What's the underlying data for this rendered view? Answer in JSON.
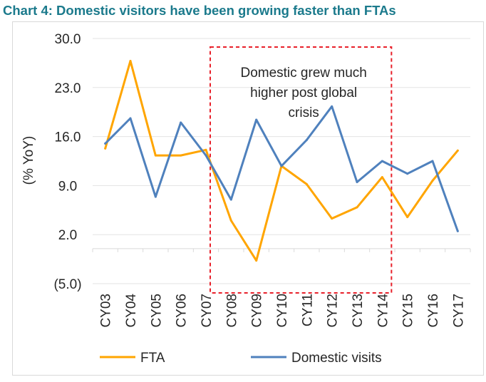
{
  "chart_data": {
    "type": "line",
    "title": "Chart 4: Domestic visitors have been growing faster than FTAs",
    "ylabel": "(% YoY)",
    "xlabel": "",
    "categories": [
      "CY03",
      "CY04",
      "CY05",
      "CY06",
      "CY07",
      "CY08",
      "CY09",
      "CY10",
      "CY11",
      "CY12",
      "CY13",
      "CY14",
      "CY15",
      "CY16",
      "CY17"
    ],
    "ylim": [
      -5.0,
      30.0
    ],
    "yticks": [
      30.0,
      23.0,
      16.0,
      9.0,
      2.0,
      -5.0
    ],
    "ytick_labels": [
      "30.0",
      "23.0",
      "16.0",
      "9.0",
      "2.0",
      "(5.0)"
    ],
    "grid": "horizontal",
    "legend_position": "bottom",
    "series": [
      {
        "name": "FTA",
        "color": "#ffa500",
        "values": [
          14.3,
          26.8,
          13.3,
          13.3,
          14.1,
          4.0,
          -1.7,
          11.8,
          9.2,
          4.3,
          5.9,
          10.2,
          4.5,
          9.7,
          14.0
        ]
      },
      {
        "name": "Domestic visits",
        "color": "#4f81bd",
        "values": [
          15.0,
          18.6,
          7.4,
          18.0,
          13.3,
          7.0,
          18.4,
          11.8,
          15.5,
          20.3,
          9.5,
          12.5,
          10.7,
          12.5,
          2.5
        ]
      }
    ],
    "annotation": {
      "lines": [
        "Domestic grew much",
        "higher post global",
        "crisis"
      ],
      "box_from": "CY07",
      "box_to": "CY14",
      "box_color": "#e8202a"
    }
  }
}
